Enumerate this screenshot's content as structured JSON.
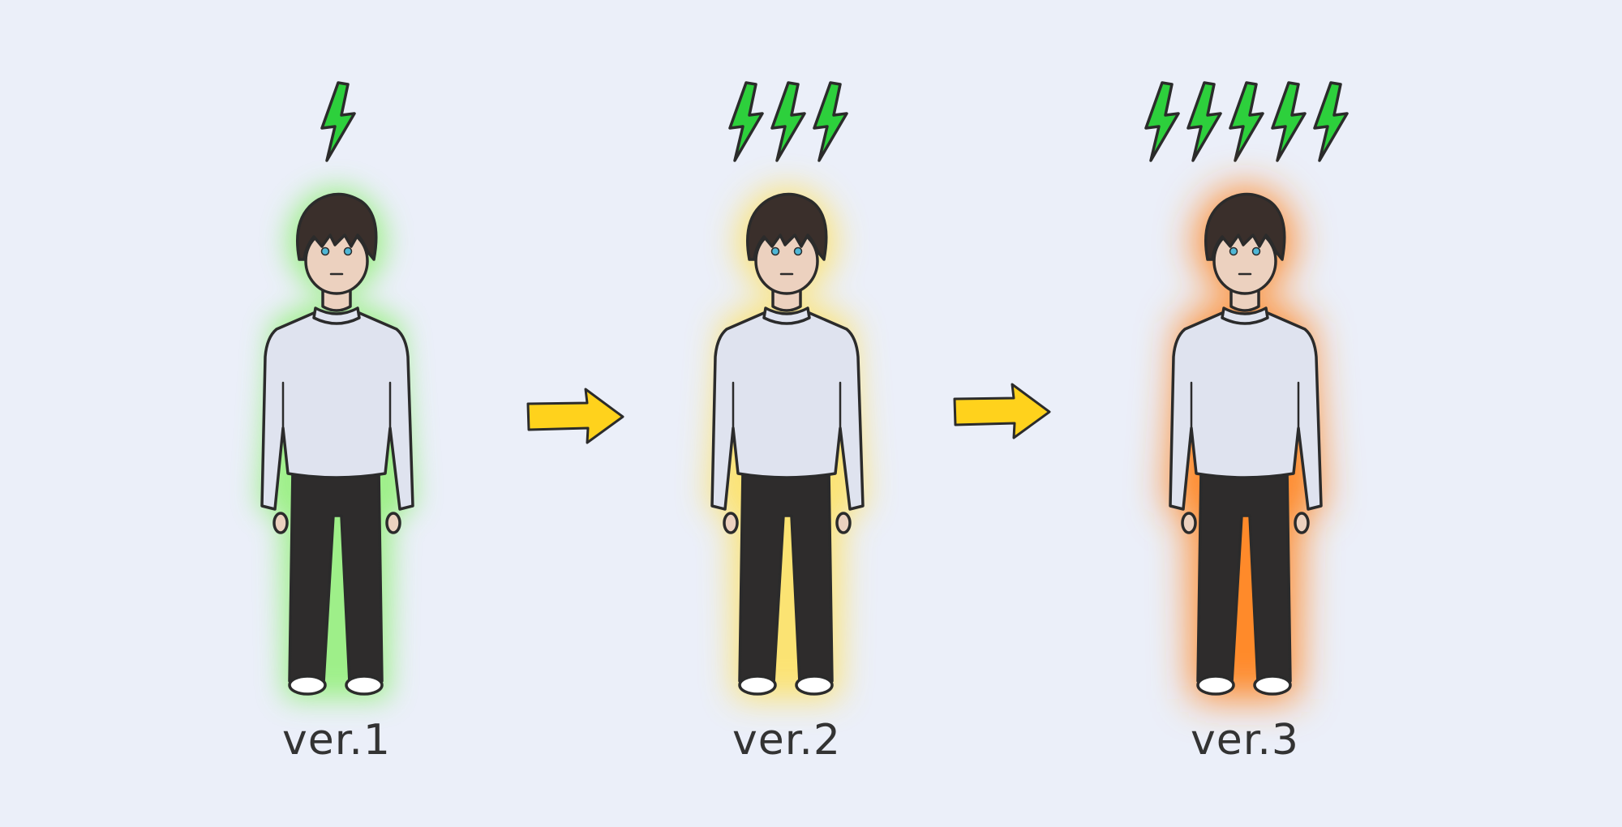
{
  "colors": {
    "background": "#ebeff9",
    "bolt": "#2dd03c",
    "arrow": "#ffd21c",
    "outline": "#2b2b2b",
    "skin": "#ecd1bf",
    "hair": "#3a2f2b",
    "sweater": "#dfe3ef",
    "pants": "#2e2c2c",
    "eye": "#4fb7d6"
  },
  "stages": [
    {
      "label": "ver.1",
      "bolt_count": 1,
      "aura_color": "#7ef05a",
      "aura_intensity": 0.33
    },
    {
      "label": "ver.2",
      "bolt_count": 3,
      "aura_color": "#ffe15c",
      "aura_intensity": 0.66
    },
    {
      "label": "ver.3",
      "bolt_count": 5,
      "aura_color": "#ff8a2a",
      "aura_intensity": 1.0
    }
  ],
  "arrows": [
    {
      "from": "ver.1",
      "to": "ver.2",
      "icon": "right-arrow-icon"
    },
    {
      "from": "ver.2",
      "to": "ver.3",
      "icon": "right-arrow-icon"
    }
  ]
}
